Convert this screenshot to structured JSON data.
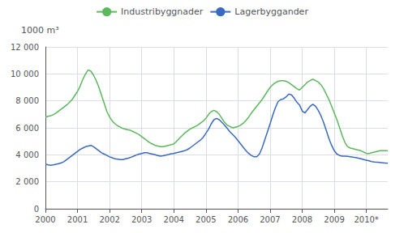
{
  "chart_data": {
    "type": "line",
    "y_label": "1000 m³",
    "categories": [
      "2000",
      null,
      null,
      null,
      null,
      null,
      null,
      null,
      null,
      null,
      null,
      null,
      "2001",
      null,
      null,
      null,
      null,
      null,
      null,
      null,
      null,
      null,
      null,
      null,
      "2002",
      null,
      null,
      null,
      null,
      null,
      null,
      null,
      null,
      null,
      null,
      null,
      "2003",
      null,
      null,
      null,
      null,
      null,
      null,
      null,
      null,
      null,
      null,
      null,
      "2004",
      null,
      null,
      null,
      null,
      null,
      null,
      null,
      null,
      null,
      null,
      null,
      "2005",
      null,
      null,
      null,
      null,
      null,
      null,
      null,
      null,
      null,
      null,
      null,
      "2006",
      null,
      null,
      null,
      null,
      null,
      null,
      null,
      null,
      null,
      null,
      null,
      "2007",
      null,
      null,
      null,
      null,
      null,
      null,
      null,
      null,
      null,
      null,
      null,
      "2008",
      null,
      null,
      null,
      null,
      null,
      null,
      null,
      null,
      null,
      null,
      null,
      "2009",
      null,
      null,
      null,
      null,
      null,
      null,
      null,
      null,
      null,
      null,
      null,
      "2010*",
      null,
      null,
      null,
      null,
      null,
      null,
      null,
      null
    ],
    "series": [
      {
        "name": "Industribyggnader",
        "color": "#5cb85c",
        "values": [
          6800,
          6850,
          6900,
          6980,
          7100,
          7250,
          7400,
          7550,
          7700,
          7900,
          8100,
          8400,
          8700,
          9100,
          9600,
          10000,
          10300,
          10200,
          9900,
          9500,
          9000,
          8400,
          7800,
          7200,
          6800,
          6500,
          6300,
          6150,
          6050,
          5950,
          5900,
          5850,
          5800,
          5700,
          5600,
          5500,
          5350,
          5200,
          5050,
          4900,
          4800,
          4700,
          4650,
          4600,
          4600,
          4650,
          4700,
          4750,
          4800,
          5000,
          5200,
          5400,
          5600,
          5750,
          5900,
          6000,
          6100,
          6200,
          6350,
          6500,
          6700,
          7000,
          7200,
          7300,
          7200,
          7000,
          6700,
          6400,
          6200,
          6100,
          6000,
          6050,
          6100,
          6200,
          6350,
          6550,
          6800,
          7100,
          7350,
          7600,
          7850,
          8100,
          8400,
          8700,
          9000,
          9200,
          9350,
          9450,
          9500,
          9500,
          9450,
          9350,
          9200,
          9050,
          8900,
          8800,
          9000,
          9200,
          9400,
          9500,
          9600,
          9500,
          9400,
          9200,
          8900,
          8500,
          8100,
          7600,
          7100,
          6600,
          6000,
          5400,
          4900,
          4600,
          4500,
          4450,
          4400,
          4350,
          4300,
          4200,
          4100,
          4100,
          4150,
          4200,
          4250,
          4300,
          4300,
          4300,
          4300
        ]
      },
      {
        "name": "Lagerbyggander",
        "color": "#3a6abf",
        "values": [
          3300,
          3250,
          3230,
          3250,
          3300,
          3350,
          3400,
          3500,
          3650,
          3800,
          3950,
          4100,
          4250,
          4400,
          4500,
          4600,
          4650,
          4700,
          4600,
          4450,
          4300,
          4150,
          4050,
          3950,
          3850,
          3780,
          3700,
          3680,
          3650,
          3650,
          3700,
          3750,
          3820,
          3900,
          3980,
          4050,
          4100,
          4150,
          4150,
          4100,
          4050,
          4000,
          3950,
          3900,
          3930,
          3970,
          4020,
          4080,
          4100,
          4150,
          4200,
          4250,
          4300,
          4380,
          4500,
          4650,
          4800,
          4950,
          5100,
          5300,
          5600,
          5900,
          6300,
          6600,
          6700,
          6600,
          6400,
          6200,
          5950,
          5700,
          5500,
          5300,
          5050,
          4800,
          4550,
          4300,
          4100,
          3950,
          3850,
          3850,
          4050,
          4500,
          5100,
          5700,
          6300,
          6950,
          7500,
          7950,
          8100,
          8150,
          8300,
          8500,
          8450,
          8200,
          7900,
          7700,
          7250,
          7100,
          7350,
          7600,
          7750,
          7600,
          7300,
          6900,
          6400,
          5800,
          5200,
          4700,
          4300,
          4050,
          3950,
          3900,
          3900,
          3880,
          3850,
          3820,
          3800,
          3750,
          3700,
          3650,
          3600,
          3550,
          3500,
          3470,
          3450,
          3430,
          3410,
          3390,
          3380
        ]
      }
    ],
    "ylim": [
      0,
      12000
    ],
    "yticks": [
      0,
      {
        "value": 2000,
        "label": "2 000"
      },
      {
        "value": 4000,
        "label": "4 000"
      },
      {
        "value": 6000,
        "label": "6 000"
      },
      {
        "value": 8000,
        "label": "8 000"
      },
      {
        "value": 10000,
        "label": "10 000"
      },
      {
        "value": 12000,
        "label": "12 000"
      }
    ],
    "grid": true,
    "legend": "top"
  }
}
